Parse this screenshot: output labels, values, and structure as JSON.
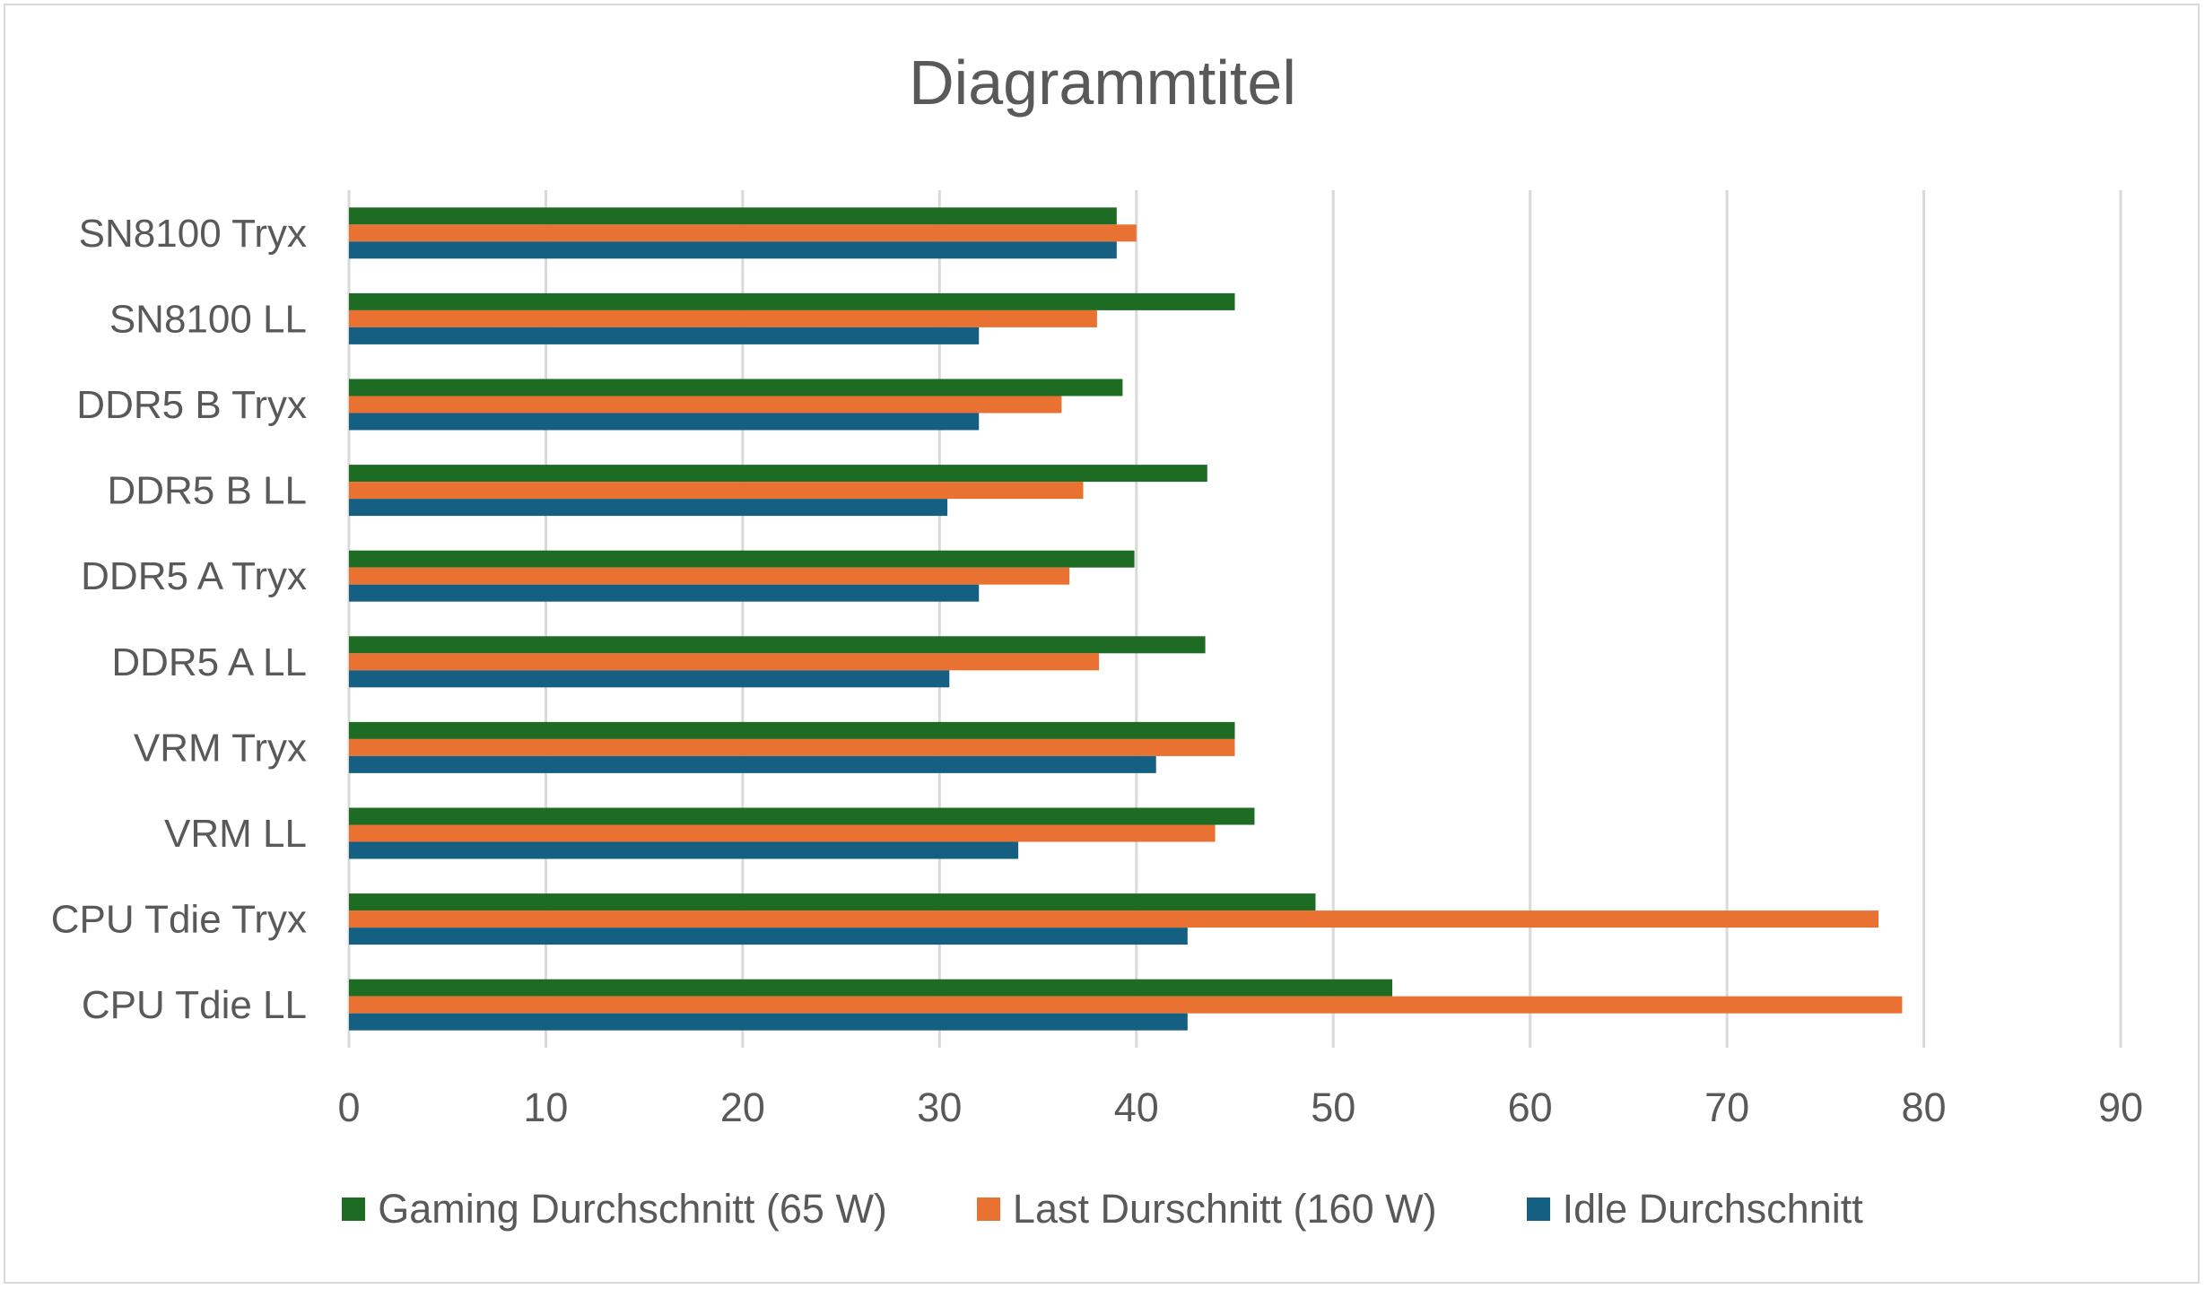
{
  "chart_data": {
    "type": "bar",
    "orientation": "horizontal",
    "title": "Diagrammtitel",
    "xlabel": "",
    "ylabel": "",
    "xlim": [
      0,
      90
    ],
    "x_ticks": [
      0,
      10,
      20,
      30,
      40,
      50,
      60,
      70,
      80,
      90
    ],
    "grid": true,
    "legend_position": "bottom",
    "categories": [
      "SN8100 Tryx",
      "SN8100 LL",
      "DDR5 B Tryx",
      "DDR5 B LL",
      "DDR5 A Tryx",
      "DDR5 A LL",
      "VRM Tryx",
      "VRM LL",
      "CPU Tdie Tryx",
      "CPU Tdie LL"
    ],
    "series": [
      {
        "name": "Gaming Durchschnitt (65 W)",
        "color": "#1e6b24",
        "values": [
          39.0,
          45.0,
          39.3,
          43.6,
          39.9,
          43.5,
          45.0,
          46.0,
          49.1,
          53.0
        ]
      },
      {
        "name": "Last Durschnitt (160 W)",
        "color": "#e97132",
        "values": [
          40.0,
          38.0,
          36.2,
          37.3,
          36.6,
          38.1,
          45.0,
          44.0,
          77.7,
          78.9
        ]
      },
      {
        "name": "Idle Durchschnitt",
        "color": "#156082",
        "values": [
          39.0,
          32.0,
          32.0,
          30.4,
          32.0,
          30.5,
          41.0,
          34.0,
          42.6,
          42.6
        ]
      }
    ]
  }
}
